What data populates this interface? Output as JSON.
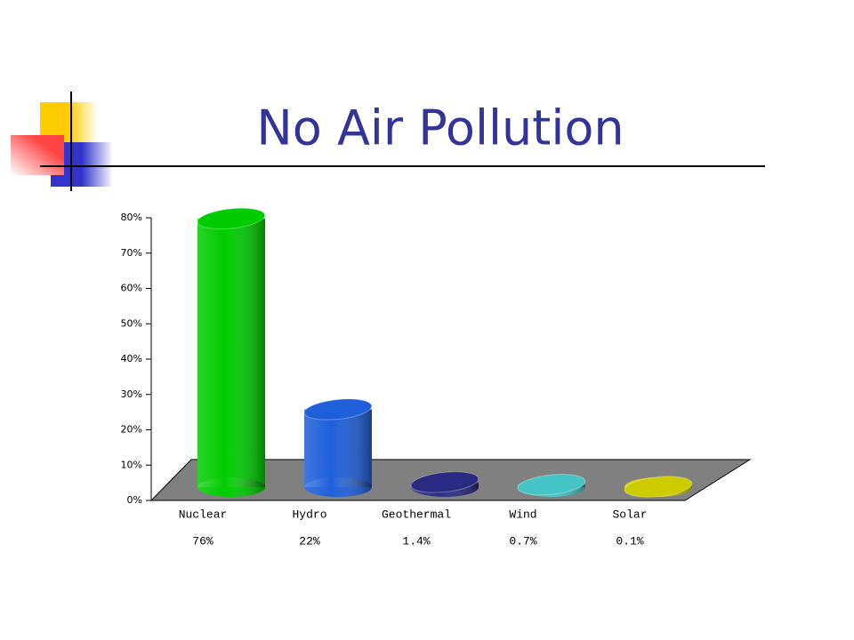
{
  "chart_data": {
    "type": "bar3d",
    "title": "No Air Pollution",
    "categories": [
      "Nuclear",
      "Hydro",
      "Geothermal",
      "Wind",
      "Solar"
    ],
    "values": [
      76,
      22,
      1.4,
      0.7,
      0.1
    ],
    "value_labels": [
      "76%",
      "22%",
      "1.4%",
      "0.7%",
      "0.1%"
    ],
    "colors": [
      "#00cc00",
      "#1f5fd9",
      "#2a2a80",
      "#44c4c4",
      "#cccc00"
    ],
    "ylim": [
      0,
      80
    ],
    "yticks": [
      {
        "value": 0,
        "label": "0%"
      },
      {
        "value": 10,
        "label": "10%"
      },
      {
        "value": 20,
        "label": "20%"
      },
      {
        "value": 30,
        "label": "30%"
      },
      {
        "value": 40,
        "label": "40%"
      },
      {
        "value": 50,
        "label": "50%"
      },
      {
        "value": 60,
        "label": "60%"
      },
      {
        "value": 70,
        "label": "70%"
      },
      {
        "value": 80,
        "label": "80%"
      }
    ]
  }
}
